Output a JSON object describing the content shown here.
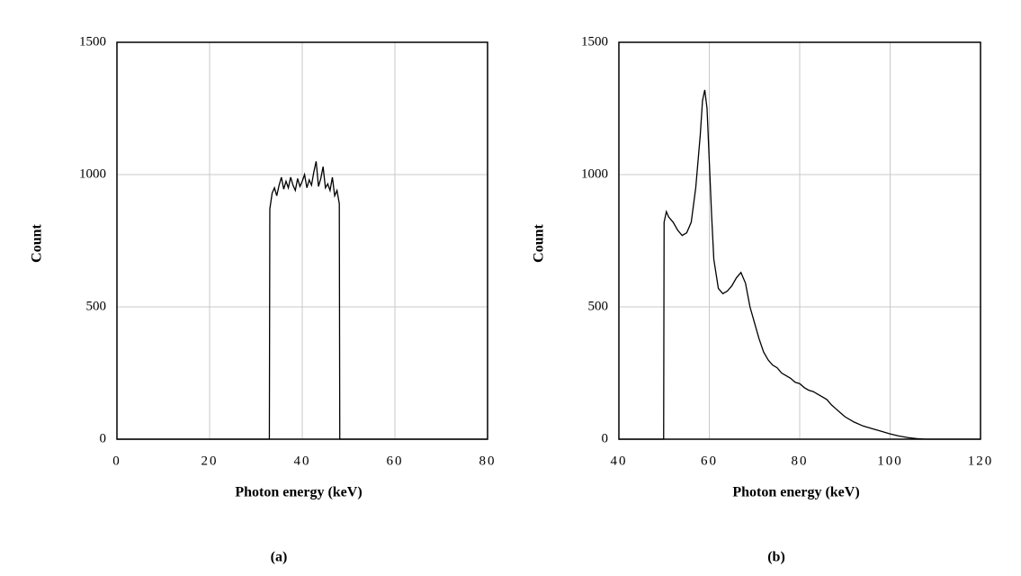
{
  "chart_data": [
    {
      "type": "line",
      "caption": "(a)",
      "x_label": "Photon energy (keV)",
      "y_label": "Count",
      "xlim": [
        0,
        80
      ],
      "xticks": [
        0,
        20,
        40,
        60,
        80
      ],
      "ylim": [
        0,
        1500
      ],
      "yticks": [
        0,
        500,
        1000,
        1500
      ],
      "grid": true,
      "series": [
        {
          "color": "#000000",
          "x": [
            0,
            32.9,
            33,
            33.5,
            34,
            34.5,
            35,
            35.5,
            36,
            36.5,
            37,
            37.5,
            38,
            38.5,
            39,
            39.5,
            40,
            40.5,
            41,
            41.5,
            42,
            42.5,
            43,
            43.5,
            44,
            44.5,
            45,
            45.5,
            46,
            46.5,
            47,
            47.5,
            48,
            48.1,
            80
          ],
          "values": [
            0,
            0,
            870,
            930,
            950,
            920,
            960,
            990,
            945,
            975,
            950,
            990,
            960,
            940,
            985,
            955,
            975,
            1000,
            950,
            980,
            960,
            1010,
            1050,
            955,
            985,
            1030,
            950,
            965,
            940,
            990,
            920,
            940,
            890,
            0,
            0
          ]
        }
      ]
    },
    {
      "type": "line",
      "caption": "(b)",
      "x_label": "Photon energy (keV)",
      "y_label": "Count",
      "xlim": [
        40,
        120
      ],
      "xticks": [
        40,
        60,
        80,
        100,
        120
      ],
      "ylim": [
        0,
        1500
      ],
      "yticks": [
        0,
        500,
        1000,
        1500
      ],
      "grid": true,
      "series": [
        {
          "color": "#000000",
          "x": [
            40,
            49.9,
            50,
            50.5,
            51,
            52,
            53,
            54,
            55,
            56,
            57,
            58,
            58.5,
            59,
            59.5,
            60,
            60.5,
            61,
            62,
            63,
            64,
            65,
            66,
            67,
            68,
            69,
            70,
            71,
            72,
            73,
            74,
            75,
            76,
            77,
            78,
            79,
            80,
            81,
            82,
            83,
            84,
            85,
            86,
            87,
            88,
            89,
            90,
            92,
            94,
            96,
            98,
            100,
            102,
            104,
            106,
            108,
            120
          ],
          "values": [
            0,
            0,
            820,
            860,
            840,
            820,
            790,
            770,
            780,
            820,
            950,
            1150,
            1280,
            1320,
            1250,
            1050,
            850,
            680,
            570,
            550,
            560,
            580,
            610,
            630,
            590,
            500,
            440,
            380,
            330,
            300,
            280,
            270,
            250,
            240,
            230,
            215,
            210,
            195,
            185,
            180,
            170,
            160,
            150,
            130,
            115,
            100,
            85,
            65,
            50,
            40,
            30,
            20,
            12,
            6,
            2,
            0,
            0
          ]
        }
      ]
    }
  ]
}
